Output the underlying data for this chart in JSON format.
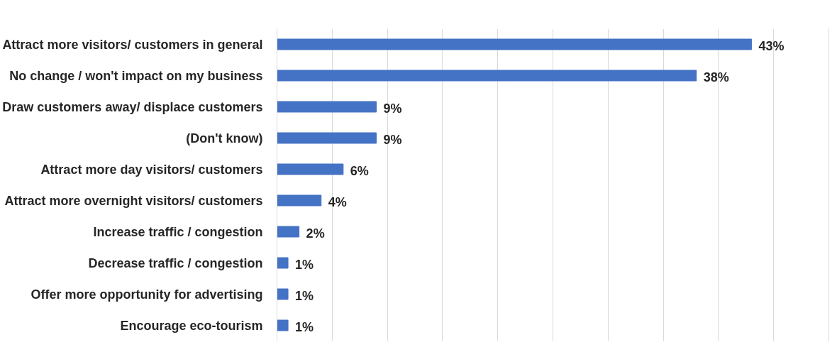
{
  "chart_data": {
    "type": "bar",
    "orientation": "horizontal",
    "categories": [
      "Attract more visitors/ customers in general",
      "No change / won't impact on my business",
      "Draw customers away/ displace customers",
      "(Don't know)",
      "Attract more day visitors/ customers",
      "Attract more overnight visitors/ customers",
      "Increase traffic / congestion",
      "Decrease traffic / congestion",
      "Offer more opportunity for advertising",
      "Encourage eco-tourism"
    ],
    "values": [
      43,
      38,
      9,
      9,
      6,
      4,
      2,
      1,
      1,
      1
    ],
    "value_labels": [
      "43%",
      "38%",
      "9%",
      "9%",
      "6%",
      "4%",
      "2%",
      "1%",
      "1%",
      "1%"
    ],
    "color": "#4472c4",
    "xlim": [
      0,
      50
    ],
    "xticks": [
      {
        "value": 0,
        "label": null
      },
      {
        "value": 5,
        "label": null
      },
      {
        "value": 10,
        "label": null
      },
      {
        "value": 15,
        "label": null
      },
      {
        "value": 20,
        "label": null
      },
      {
        "value": 25,
        "label": null
      },
      {
        "value": 30,
        "label": null
      },
      {
        "value": 35,
        "label": null
      },
      {
        "value": 40,
        "label": null
      },
      {
        "value": 45,
        "label": null
      },
      {
        "value": 50,
        "label": null
      }
    ],
    "grid": "x",
    "tick_labels": "y"
  }
}
